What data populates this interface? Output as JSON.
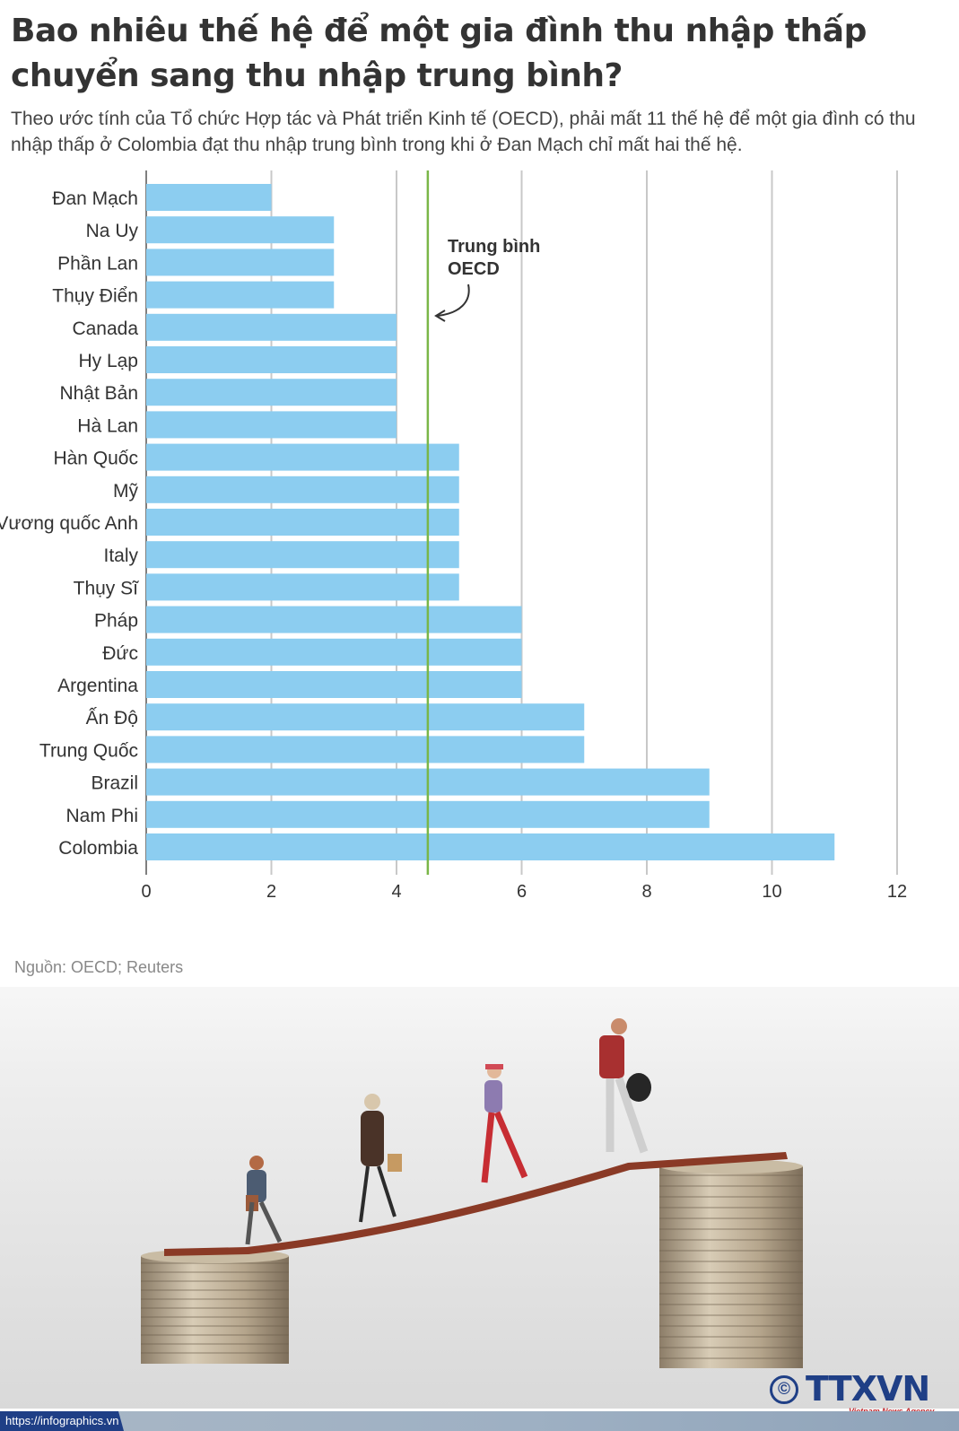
{
  "title": "Bao nhiêu thế hệ để một gia đình thu nhập thấp chuyển sang thu nhập trung bình?",
  "subtitle": "Theo ước tính của Tổ chức Hợp tác và Phát triển Kinh tế (OECD), phải mất 11 thế hệ để một gia đình có thu nhập thấp ở Colombia đạt thu nhập trung bình trong khi ở Đan Mạch chỉ mất hai thế hệ.",
  "source": "Nguồn: OECD; Reuters",
  "footer": {
    "url": "https://infographics.vn",
    "logo_symbol": "©",
    "logo": "TTXVN",
    "agency": "Vietnam News Agency"
  },
  "colors": {
    "bar": "#8ccdf0",
    "reference_line": "#7ab648",
    "grid": "#c8c8c8",
    "text": "#333333",
    "brand": "#1f3f86"
  },
  "chart_data": {
    "type": "bar",
    "orientation": "horizontal",
    "categories": [
      "Đan Mạch",
      "Na Uy",
      "Phần Lan",
      "Thụy Điển",
      "Canada",
      "Hy Lạp",
      "Nhật Bản",
      "Hà Lan",
      "Hàn Quốc",
      "Mỹ",
      "Vương quốc Anh",
      "Italy",
      "Thụy Sĩ",
      "Pháp",
      "Đức",
      "Argentina",
      "Ấn Độ",
      "Trung Quốc",
      "Brazil",
      "Nam Phi",
      "Colombia"
    ],
    "values": [
      2,
      3,
      3,
      3,
      4,
      4,
      4,
      4,
      5,
      5,
      5,
      5,
      5,
      6,
      6,
      6,
      7,
      7,
      9,
      9,
      11
    ],
    "xlim": [
      0,
      12
    ],
    "xticks": [
      0,
      2,
      4,
      6,
      8,
      10,
      12
    ],
    "grid": true,
    "reference_line": {
      "value": 4.5,
      "label_lines": [
        "Trung bình",
        "OECD"
      ]
    }
  }
}
